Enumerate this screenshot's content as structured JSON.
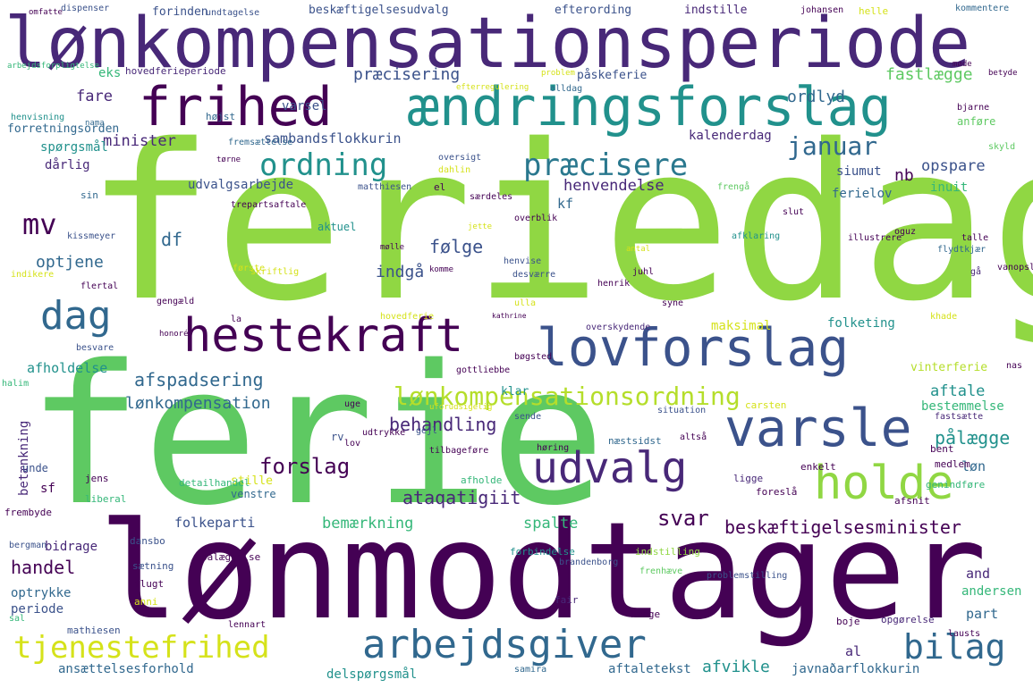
{
  "palette": {
    "deep_purple": "#440154",
    "indigo": "#3b528b",
    "blue": "#31688e",
    "teal": "#21918c",
    "green": "#35b779",
    "lime": "#90d743",
    "yellow": "#fde725",
    "light_green": "#5ec962"
  },
  "words": [
    {
      "text": "feriedag"
    },
    {
      "text": "ferie"
    },
    {
      "text": "lønmodtager"
    },
    {
      "text": "lønkompensationsperiode"
    },
    {
      "text": "frihed"
    },
    {
      "text": "ændringsforslag"
    },
    {
      "text": "hestekraft"
    },
    {
      "text": "lovforslag"
    },
    {
      "text": "varsle"
    },
    {
      "text": "udvalg"
    },
    {
      "text": "holde"
    },
    {
      "text": "arbejdsgiver"
    },
    {
      "text": "tjenestefrihed"
    },
    {
      "text": "bilag"
    },
    {
      "text": "dag"
    },
    {
      "text": "mv"
    },
    {
      "text": "ordning"
    },
    {
      "text": "præcisere"
    },
    {
      "text": "januar"
    },
    {
      "text": "lønkompensationsordning"
    },
    {
      "text": "afspadsering"
    },
    {
      "text": "lønkompensation"
    },
    {
      "text": "behandling"
    },
    {
      "text": "pålægge"
    },
    {
      "text": "forslag"
    },
    {
      "text": "svar"
    },
    {
      "text": "beskæftigelsesminister"
    },
    {
      "text": "ataqatigiit"
    },
    {
      "text": "bemærkning"
    },
    {
      "text": "spalte"
    },
    {
      "text": "handel"
    },
    {
      "text": "minister"
    },
    {
      "text": "præcisering"
    },
    {
      "text": "ordlyd"
    },
    {
      "text": "fastlægge"
    },
    {
      "text": "sambandsflokkurin"
    },
    {
      "text": "henvendelse"
    },
    {
      "text": "opspare"
    },
    {
      "text": "følge"
    },
    {
      "text": "indgå"
    },
    {
      "text": "optjene"
    },
    {
      "text": "df"
    },
    {
      "text": "afholdelse"
    },
    {
      "text": "aftale"
    },
    {
      "text": "bestemmelse"
    },
    {
      "text": "løn"
    },
    {
      "text": "and"
    },
    {
      "text": "andersen"
    },
    {
      "text": "part"
    },
    {
      "text": "al"
    },
    {
      "text": "afvikle"
    },
    {
      "text": "javnaðarflokkurin"
    },
    {
      "text": "delspørgsmål"
    },
    {
      "text": "ansættelsesforhold"
    },
    {
      "text": "aftaletekst"
    },
    {
      "text": "folkeparti"
    },
    {
      "text": "bidrage"
    },
    {
      "text": "optrykke"
    },
    {
      "text": "periode"
    },
    {
      "text": "maksimal"
    },
    {
      "text": "folketing"
    },
    {
      "text": "vinterferie"
    },
    {
      "text": "udvalgsarbejde"
    },
    {
      "text": "ferielov"
    },
    {
      "text": "inuit"
    },
    {
      "text": "siumut"
    },
    {
      "text": "kalenderdag"
    },
    {
      "text": "varsel"
    },
    {
      "text": "fare"
    },
    {
      "text": "eks"
    },
    {
      "text": "dårlig"
    },
    {
      "text": "spørgsmål"
    },
    {
      "text": "beskæftigelsesudvalg"
    },
    {
      "text": "efterording"
    },
    {
      "text": "indstille"
    },
    {
      "text": "forinden"
    },
    {
      "text": "hovedferieperiode"
    },
    {
      "text": "påskeferie"
    },
    {
      "text": "klar"
    },
    {
      "text": "betænkning"
    },
    {
      "text": "unde"
    },
    {
      "text": "sf"
    },
    {
      "text": "stille"
    },
    {
      "text": "venstre"
    },
    {
      "text": "nb"
    },
    {
      "text": "kf"
    },
    {
      "text": "rv"
    },
    {
      "text": "aktuel"
    },
    {
      "text": "forretningsorden"
    },
    {
      "text": "arbejdsforpligtelse"
    },
    {
      "text": "forbindelse"
    },
    {
      "text": "indstilling"
    },
    {
      "text": "sætning"
    },
    {
      "text": "pålæggelse"
    },
    {
      "text": "flugt"
    },
    {
      "text": "fair"
    },
    {
      "text": "hænge"
    },
    {
      "text": "boje"
    },
    {
      "text": "opgørelse"
    },
    {
      "text": "mathiesen"
    },
    {
      "text": "samira"
    },
    {
      "text": "lausts"
    },
    {
      "text": "frembyde"
    },
    {
      "text": "jens"
    },
    {
      "text": "liberal"
    },
    {
      "text": "detailhandel"
    },
    {
      "text": "afholde"
    },
    {
      "text": "genindføre"
    },
    {
      "text": "medlem"
    },
    {
      "text": "bent"
    },
    {
      "text": "enkelt"
    },
    {
      "text": "ligge"
    },
    {
      "text": "foreslå"
    },
    {
      "text": "afsnit"
    },
    {
      "text": "dansbo"
    },
    {
      "text": "bergman"
    },
    {
      "text": "anni"
    },
    {
      "text": "sal"
    },
    {
      "text": "lennart"
    },
    {
      "text": "brandenborg"
    },
    {
      "text": "problemstilling"
    },
    {
      "text": "frenhæve"
    },
    {
      "text": "tilbageføre"
    },
    {
      "text": "udtrykke"
    },
    {
      "text": "gejl"
    },
    {
      "text": "næstsidst"
    },
    {
      "text": "altså"
    },
    {
      "text": "høring"
    },
    {
      "text": "sende"
    },
    {
      "text": "situation"
    },
    {
      "text": "carsten"
    },
    {
      "text": "fastsætte"
    },
    {
      "text": "uforudsigelig"
    },
    {
      "text": "uge"
    },
    {
      "text": "lov"
    },
    {
      "text": "halim"
    },
    {
      "text": "nas"
    },
    {
      "text": "gottliebbe"
    },
    {
      "text": "bøgsted"
    },
    {
      "text": "besvare"
    },
    {
      "text": "honoré"
    },
    {
      "text": "la"
    },
    {
      "text": "hovedferie"
    },
    {
      "text": "ulla"
    },
    {
      "text": "overskydende"
    },
    {
      "text": "syne"
    },
    {
      "text": "kathrine"
    },
    {
      "text": "gengæld"
    },
    {
      "text": "første"
    },
    {
      "text": "trepartsaftale"
    },
    {
      "text": "skriftlig"
    },
    {
      "text": "komme"
    },
    {
      "text": "desværre"
    },
    {
      "text": "henrik"
    },
    {
      "text": "juhl"
    },
    {
      "text": "afklaring"
    },
    {
      "text": "flydtkjær"
    },
    {
      "text": "vanopslagh"
    },
    {
      "text": "khade"
    },
    {
      "text": "gå"
    },
    {
      "text": "talle"
    },
    {
      "text": "indikere"
    },
    {
      "text": "flertal"
    },
    {
      "text": "mølle"
    },
    {
      "text": "henvise"
    },
    {
      "text": "antal"
    },
    {
      "text": "kissmeyer"
    },
    {
      "text": "jette"
    },
    {
      "text": "overblik"
    },
    {
      "text": "illustrere"
    },
    {
      "text": "oguz"
    },
    {
      "text": "slut"
    },
    {
      "text": "sin"
    },
    {
      "text": "matthiesen"
    },
    {
      "text": "særdeles"
    },
    {
      "text": "el"
    },
    {
      "text": "frengå"
    },
    {
      "text": "tørne"
    },
    {
      "text": "dahlin"
    },
    {
      "text": "oversigt"
    },
    {
      "text": "skyld"
    },
    {
      "text": "fremsættelse"
    },
    {
      "text": "henvisning"
    },
    {
      "text": "højst"
    },
    {
      "text": "nama"
    },
    {
      "text": "bjarne"
    },
    {
      "text": "anføre"
    },
    {
      "text": "efterregulering"
    },
    {
      "text": "olldag"
    },
    {
      "text": "problem"
    },
    {
      "text": "betyde"
    },
    {
      "text": "møde"
    },
    {
      "text": "kommentere"
    },
    {
      "text": "helle"
    },
    {
      "text": "johansen"
    },
    {
      "text": "undtagelse"
    },
    {
      "text": "dispenser"
    },
    {
      "text": "omfatte"
    }
  ]
}
